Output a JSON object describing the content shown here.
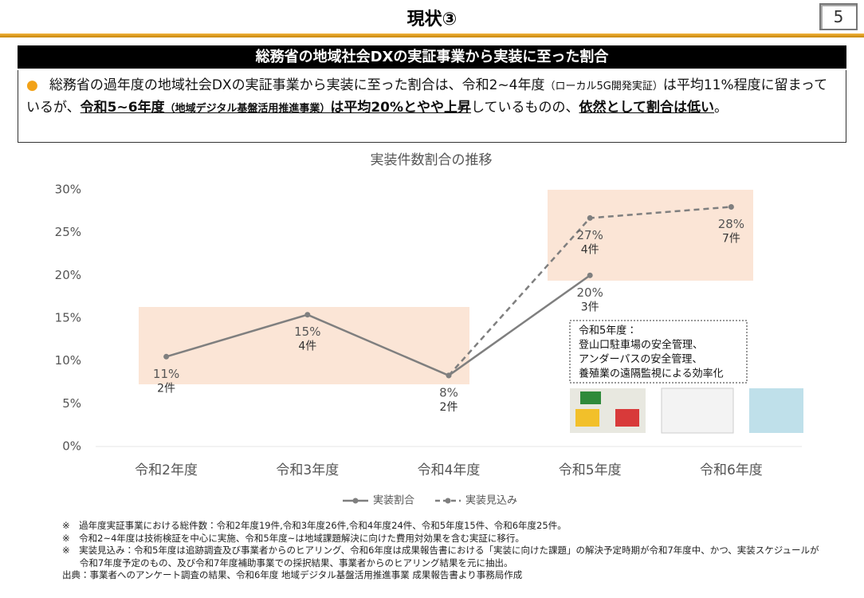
{
  "header": {
    "title": "現状③",
    "page_number": "5"
  },
  "section_heading": "総務省の地域社会DXの実証事業から実装に至った割合",
  "bullet": {
    "segments": [
      {
        "text": "総務省の過年度の地域社会DXの実証事業から実装に至った割合は、令和2~4年度"
      },
      {
        "text": "（ローカル5G開発実証）",
        "small": true
      },
      {
        "text": "は平均11%程度に留まっているが、"
      },
      {
        "text": "令和5~6年度",
        "bold": true
      },
      {
        "text": "（地域デジタル基盤活用推進事業）",
        "bold": true,
        "small": true
      },
      {
        "text": "は平均20%とやや上昇",
        "bold": true
      },
      {
        "text": "しているものの、"
      },
      {
        "text": "依然として割合は低い",
        "bold": true
      },
      {
        "text": "。"
      }
    ]
  },
  "chart_data": {
    "type": "line",
    "title": "実装件数割合の推移",
    "categories": [
      "令和2年度",
      "令和3年度",
      "令和4年度",
      "令和5年度",
      "令和6年度"
    ],
    "series": [
      {
        "name": "実装割合",
        "color": "#7f7f7f",
        "dashed": false,
        "values": [
          10.5,
          15.4,
          8.3,
          20,
          null
        ],
        "value_labels": [
          "11%",
          "15%",
          "8%",
          "20%",
          null
        ],
        "count_labels": [
          "2件",
          "4件",
          "2件",
          "3件",
          null
        ]
      },
      {
        "name": "実装見込み",
        "color": "#7f7f7f",
        "dashed": true,
        "values": [
          null,
          null,
          8.3,
          26.7,
          28
        ],
        "value_labels": [
          null,
          null,
          null,
          "27%",
          "28%"
        ],
        "count_labels": [
          null,
          null,
          null,
          "4件",
          "7件"
        ]
      }
    ],
    "ylim": [
      0,
      30
    ],
    "yticks": [
      {
        "value": 0,
        "label": "0%"
      },
      {
        "value": 5,
        "label": "5%"
      },
      {
        "value": 10,
        "label": "10%"
      },
      {
        "value": 15,
        "label": "15%"
      },
      {
        "value": 20,
        "label": "20%"
      },
      {
        "value": 25,
        "label": "25%"
      },
      {
        "value": 30,
        "label": "30%"
      }
    ],
    "grid": false,
    "annotation": [
      "令和5年度：",
      "登山口駐車場の安全管理、",
      "アンダーパスの安全管理、",
      "養殖業の遠隔監視による効率化"
    ]
  },
  "notes": [
    "※　過年度実証事業における総件数：令和2年度19件,令和3年度26件,令和4年度24件、令和5年度15件、令和6年度25件。",
    "※　令和2~4年度は技術検証を中心に実施、令和5年度~は地域課題解決に向けた費用対効果を含む実証に移行。",
    "※　実装見込み：令和5年度は追跡調査及び事業者からのヒアリング、令和6年度は成果報告書における「実装に向けた課題」の解決予定時期が令和7年度中、かつ、実装スケジュールが令和7年度予定のもの、及び令和7年度補助事業での採択結果、事業者からのヒアリング結果を元に抽出。",
    "出典：事業者へのアンケート調査の結果、令和6年度 地域デジタル基盤活用推進事業 成果報告書より事務局作成"
  ]
}
